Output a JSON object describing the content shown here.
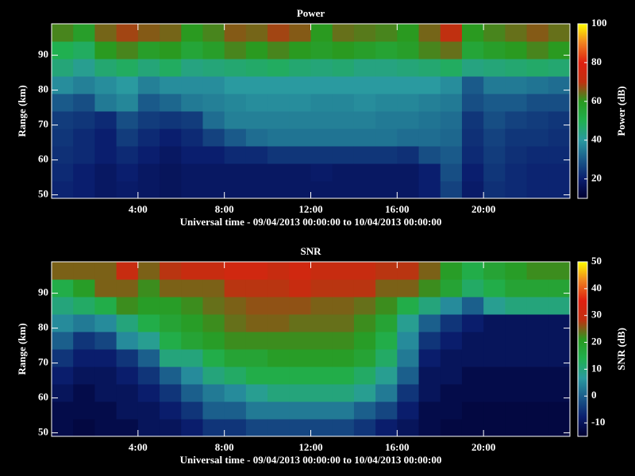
{
  "chart_data": [
    {
      "type": "heatmap",
      "title": "Power",
      "xlabel": "Universal time - 09/04/2013 00:00:00 to 10/04/2013 00:00:00",
      "ylabel": "Range (km)",
      "colorbar_label": "Power (dB)",
      "xlim": [
        0,
        24
      ],
      "ylim": [
        49,
        99
      ],
      "zlim": [
        10,
        100
      ],
      "xticks": [
        {
          "value": 4,
          "label": "4:00"
        },
        {
          "value": 8,
          "label": "8:00"
        },
        {
          "value": 12,
          "label": "12:00"
        },
        {
          "value": 16,
          "label": "16:00"
        },
        {
          "value": 20,
          "label": "20:00"
        }
      ],
      "yticks": [
        50,
        60,
        70,
        80,
        90
      ],
      "zticks": [
        20,
        40,
        60,
        80,
        100
      ],
      "colormap": [
        "#000030",
        "#0a1e6e",
        "#1a5a8a",
        "#2a9aa0",
        "#20b050",
        "#2a9a20",
        "#c03010",
        "#e02010",
        "#f08020",
        "#ffff00"
      ],
      "xbins": [
        0,
        1,
        2,
        3,
        4,
        5,
        6,
        7,
        8,
        9,
        10,
        11,
        12,
        13,
        14,
        15,
        16,
        17,
        18,
        19,
        20,
        21,
        22,
        23,
        24
      ],
      "ybins": [
        49,
        54,
        59,
        64,
        69,
        74,
        79,
        84,
        89,
        94,
        99
      ],
      "z": [
        [
          21,
          20,
          18,
          19,
          18,
          17,
          18,
          18,
          18,
          18,
          18,
          18,
          18,
          18,
          18,
          18,
          18,
          20,
          26,
          19,
          23,
          22,
          21,
          21
        ],
        [
          22,
          20,
          18,
          20,
          18,
          17,
          18,
          18,
          18,
          18,
          18,
          18,
          19,
          18,
          18,
          18,
          18,
          20,
          28,
          20,
          24,
          22,
          21,
          21
        ],
        [
          23,
          22,
          20,
          22,
          20,
          18,
          20,
          20,
          22,
          22,
          24,
          24,
          24,
          24,
          24,
          24,
          23,
          28,
          30,
          22,
          25,
          23,
          22,
          22
        ],
        [
          24,
          22,
          20,
          25,
          22,
          20,
          22,
          26,
          30,
          33,
          34,
          34,
          34,
          34,
          34,
          34,
          33,
          33,
          32,
          23,
          26,
          24,
          24,
          23
        ],
        [
          25,
          24,
          22,
          28,
          25,
          24,
          25,
          33,
          36,
          36,
          36,
          36,
          36,
          36,
          36,
          35,
          35,
          34,
          33,
          24,
          28,
          26,
          25,
          24
        ],
        [
          30,
          28,
          35,
          37,
          30,
          32,
          35,
          36,
          37,
          38,
          38,
          38,
          37,
          37,
          38,
          37,
          37,
          36,
          35,
          28,
          30,
          30,
          28,
          28
        ],
        [
          38,
          36,
          38,
          40,
          36,
          38,
          38,
          38,
          40,
          40,
          40,
          40,
          40,
          40,
          40,
          40,
          40,
          40,
          38,
          30,
          35,
          35,
          34,
          33
        ],
        [
          45,
          42,
          46,
          48,
          45,
          48,
          44,
          45,
          46,
          47,
          48,
          46,
          45,
          46,
          44,
          44,
          45,
          46,
          48,
          44,
          45,
          46,
          47,
          46
        ],
        [
          50,
          48,
          60,
          62,
          58,
          60,
          55,
          58,
          62,
          60,
          62,
          60,
          58,
          60,
          58,
          56,
          58,
          62,
          64,
          55,
          58,
          60,
          62,
          60
        ],
        [
          62,
          58,
          65,
          68,
          66,
          65,
          60,
          62,
          66,
          65,
          68,
          66,
          60,
          64,
          63,
          62,
          60,
          65,
          70,
          60,
          62,
          64,
          66,
          64
        ]
      ]
    },
    {
      "type": "heatmap",
      "title": "SNR",
      "xlabel": "Universal time - 09/04/2013 00:00:00 to 10/04/2013 00:00:00",
      "ylabel": "Range (km)",
      "colorbar_label": "SNR (dB)",
      "xlim": [
        0,
        24
      ],
      "ylim": [
        49,
        99
      ],
      "zlim": [
        -15,
        50
      ],
      "xticks": [
        {
          "value": 4,
          "label": "4:00"
        },
        {
          "value": 8,
          "label": "8:00"
        },
        {
          "value": 12,
          "label": "12:00"
        },
        {
          "value": 16,
          "label": "16:00"
        },
        {
          "value": 20,
          "label": "20:00"
        }
      ],
      "yticks": [
        50,
        60,
        70,
        80,
        90
      ],
      "zticks": [
        -10,
        0,
        10,
        20,
        30,
        40,
        50
      ],
      "colormap": [
        "#000030",
        "#0a1e6e",
        "#1a5a8a",
        "#2a9aa0",
        "#20b050",
        "#2a9a20",
        "#c03010",
        "#e02010",
        "#f08020",
        "#ffff00"
      ],
      "xbins": [
        0,
        1,
        2,
        3,
        4,
        5,
        6,
        7,
        8,
        9,
        10,
        11,
        12,
        13,
        14,
        15,
        16,
        17,
        18,
        19,
        20,
        21,
        22,
        23,
        24
      ],
      "ybins": [
        49,
        54,
        59,
        64,
        69,
        74,
        79,
        84,
        89,
        94,
        99
      ],
      "z": [
        [
          -12,
          -13,
          -12,
          -12,
          -10,
          -10,
          -8,
          -5,
          -5,
          -3,
          -3,
          -3,
          -3,
          -3,
          -5,
          -8,
          -10,
          -12,
          -13,
          -13,
          -13,
          -13,
          -13,
          -13
        ],
        [
          -12,
          -12,
          -12,
          -10,
          -10,
          -8,
          -5,
          0,
          0,
          3,
          3,
          3,
          3,
          3,
          0,
          -3,
          -8,
          -12,
          -12,
          -13,
          -13,
          -13,
          -13,
          -13
        ],
        [
          -10,
          -12,
          -10,
          -10,
          -8,
          -5,
          0,
          3,
          5,
          8,
          10,
          10,
          10,
          10,
          8,
          3,
          -5,
          -10,
          -12,
          -12,
          -12,
          -12,
          -12,
          -12
        ],
        [
          -8,
          -10,
          -10,
          -8,
          -5,
          0,
          5,
          10,
          12,
          15,
          15,
          15,
          15,
          15,
          12,
          8,
          0,
          -10,
          -10,
          -12,
          -12,
          -12,
          -12,
          -12
        ],
        [
          -5,
          -8,
          -8,
          -5,
          0,
          10,
          10,
          15,
          18,
          18,
          20,
          20,
          20,
          20,
          18,
          12,
          3,
          -8,
          -10,
          -10,
          -10,
          -10,
          -10,
          -10
        ],
        [
          0,
          -5,
          -3,
          5,
          8,
          15,
          18,
          20,
          22,
          22,
          22,
          22,
          22,
          22,
          20,
          15,
          5,
          -5,
          -8,
          -10,
          -10,
          -10,
          -10,
          -10
        ],
        [
          5,
          3,
          5,
          10,
          15,
          18,
          20,
          22,
          24,
          25,
          25,
          24,
          24,
          24,
          22,
          18,
          8,
          0,
          -5,
          -8,
          -10,
          -10,
          -10,
          -10
        ],
        [
          10,
          12,
          15,
          22,
          20,
          20,
          22,
          24,
          25,
          26,
          26,
          26,
          25,
          25,
          24,
          22,
          15,
          10,
          5,
          0,
          8,
          10,
          10,
          10
        ],
        [
          15,
          20,
          25,
          25,
          22,
          25,
          25,
          25,
          28,
          28,
          28,
          30,
          28,
          28,
          28,
          25,
          25,
          22,
          18,
          12,
          15,
          18,
          18,
          18
        ],
        [
          25,
          25,
          25,
          30,
          25,
          28,
          30,
          30,
          32,
          32,
          30,
          32,
          30,
          30,
          30,
          28,
          28,
          25,
          20,
          15,
          18,
          20,
          22,
          22
        ]
      ]
    }
  ]
}
